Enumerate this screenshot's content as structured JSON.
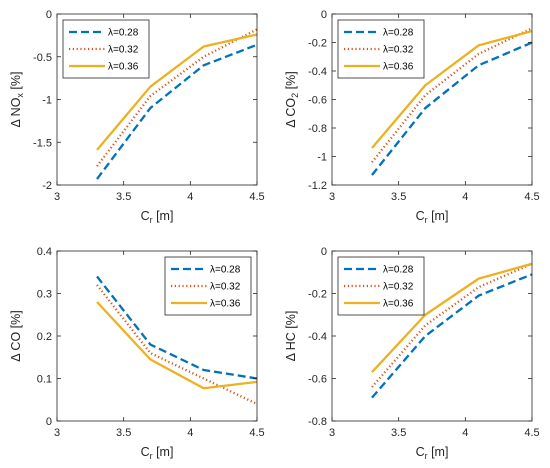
{
  "chart_data": [
    {
      "type": "line",
      "xlabel_main": "C",
      "xlabel_sub": "r",
      "xlabel_suffix": " [m]",
      "ylabel_main": "Δ NO",
      "ylabel_sub": "x",
      "ylabel_suffix": " [%]",
      "xlim": [
        3,
        4.5
      ],
      "ylim": [
        -2,
        0
      ],
      "xticks": [
        "3",
        "3.5",
        "4",
        "4.5"
      ],
      "yticks": [
        0,
        -0.5,
        -1,
        -1.5,
        -2
      ],
      "ytick_labels": [
        "0",
        "-0.5",
        "-1",
        "-1.5",
        "-2"
      ],
      "legend_position": "top-left",
      "x": [
        3.3,
        3.7,
        4.1,
        4.5
      ],
      "series": [
        {
          "name": "λ=0.28",
          "values": [
            -1.93,
            -1.1,
            -0.6,
            -0.36
          ]
        },
        {
          "name": "λ=0.32",
          "values": [
            -1.78,
            -0.96,
            -0.5,
            -0.18
          ]
        },
        {
          "name": "λ=0.36",
          "values": [
            -1.59,
            -0.85,
            -0.38,
            -0.24
          ]
        }
      ]
    },
    {
      "type": "line",
      "xlabel_main": "C",
      "xlabel_sub": "r",
      "xlabel_suffix": " [m]",
      "ylabel_main": "Δ CO",
      "ylabel_sub": "2",
      "ylabel_suffix": " [%]",
      "xlim": [
        3,
        4.5
      ],
      "ylim": [
        -1.2,
        0
      ],
      "xticks": [
        "3",
        "3.5",
        "4",
        "4.5"
      ],
      "yticks": [
        0,
        -0.2,
        -0.4,
        -0.6,
        -0.8,
        -1,
        -1.2
      ],
      "ytick_labels": [
        "0",
        "-0.2",
        "-0.4",
        "-0.6",
        "-0.8",
        "-1",
        "-1.2"
      ],
      "legend_position": "top-left",
      "x": [
        3.3,
        3.7,
        4.1,
        4.5
      ],
      "series": [
        {
          "name": "λ=0.28",
          "values": [
            -1.13,
            -0.66,
            -0.36,
            -0.2
          ]
        },
        {
          "name": "λ=0.32",
          "values": [
            -1.04,
            -0.57,
            -0.28,
            -0.1
          ]
        },
        {
          "name": "λ=0.36",
          "values": [
            -0.94,
            -0.5,
            -0.22,
            -0.12
          ]
        }
      ]
    },
    {
      "type": "line",
      "xlabel_main": "C",
      "xlabel_sub": "r",
      "xlabel_suffix": " [m]",
      "ylabel_main": "Δ CO [%]",
      "ylabel_sub": "",
      "ylabel_suffix": "",
      "xlim": [
        3,
        4.5
      ],
      "ylim": [
        0,
        0.4
      ],
      "xticks": [
        "3",
        "3.5",
        "4",
        "4.5"
      ],
      "yticks": [
        0,
        0.1,
        0.2,
        0.3,
        0.4
      ],
      "ytick_labels": [
        "0",
        "0.1",
        "0.2",
        "0.3",
        "0.4"
      ],
      "legend_position": "top-right",
      "x": [
        3.3,
        3.7,
        4.1,
        4.5
      ],
      "series": [
        {
          "name": "λ=0.28",
          "values": [
            0.34,
            0.18,
            0.12,
            0.1
          ]
        },
        {
          "name": "λ=0.32",
          "values": [
            0.32,
            0.16,
            0.1,
            0.04
          ]
        },
        {
          "name": "λ=0.36",
          "values": [
            0.28,
            0.145,
            0.077,
            0.092
          ]
        }
      ]
    },
    {
      "type": "line",
      "xlabel_main": "C",
      "xlabel_sub": "r",
      "xlabel_suffix": " [m]",
      "ylabel_main": "Δ HC [%]",
      "ylabel_sub": "",
      "ylabel_suffix": "",
      "xlim": [
        3,
        4.5
      ],
      "ylim": [
        -0.8,
        0
      ],
      "xticks": [
        "3",
        "3.5",
        "4",
        "4.5"
      ],
      "yticks": [
        0,
        -0.2,
        -0.4,
        -0.6,
        -0.8
      ],
      "ytick_labels": [
        "0",
        "-0.2",
        "-0.4",
        "-0.6",
        "-0.8"
      ],
      "legend_position": "top-left",
      "x": [
        3.3,
        3.7,
        4.1,
        4.5
      ],
      "series": [
        {
          "name": "λ=0.28",
          "values": [
            -0.69,
            -0.4,
            -0.21,
            -0.11
          ]
        },
        {
          "name": "λ=0.32",
          "values": [
            -0.64,
            -0.35,
            -0.17,
            -0.06
          ]
        },
        {
          "name": "λ=0.36",
          "values": [
            -0.57,
            -0.3,
            -0.13,
            -0.06
          ]
        }
      ]
    }
  ],
  "series_styles": [
    {
      "color": "#0072BD",
      "dash": "dashed"
    },
    {
      "color": "#D95319",
      "dash": "dotted"
    },
    {
      "color": "#EDB120",
      "dash": "solid"
    }
  ]
}
